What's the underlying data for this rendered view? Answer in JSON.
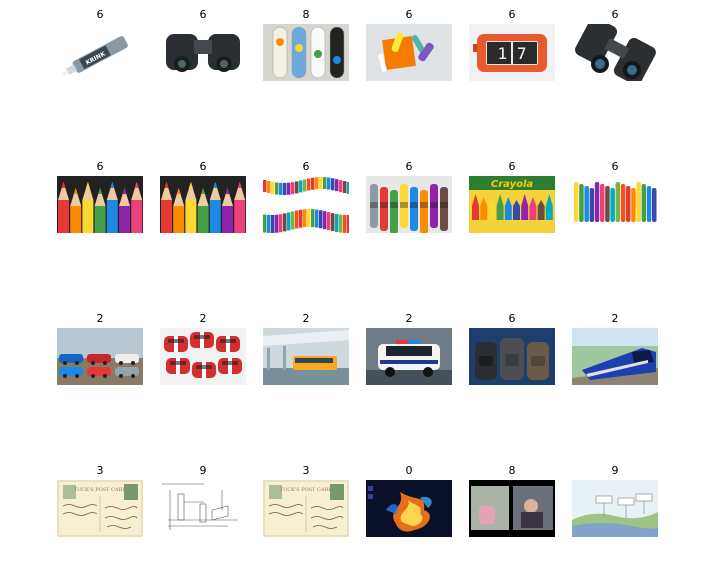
{
  "rows": [
    [
      {
        "label": "6",
        "icon": "marker-pen-icon"
      },
      {
        "label": "6",
        "icon": "compact-binoculars-icon"
      },
      {
        "label": "8",
        "icon": "skateboards-icon"
      },
      {
        "label": "6",
        "icon": "paper-clips-icon"
      },
      {
        "label": "6",
        "icon": "flip-clock-icon",
        "text": "1 7"
      },
      {
        "label": "6",
        "icon": "large-binoculars-icon"
      }
    ],
    [
      {
        "label": "6",
        "icon": "colored-pencils-icon"
      },
      {
        "label": "6",
        "icon": "colored-pencils-icon"
      },
      {
        "label": "6",
        "icon": "pencil-wave-icon"
      },
      {
        "label": "6",
        "icon": "crayons-icon"
      },
      {
        "label": "6",
        "icon": "crayola-box-icon",
        "text": "Crayola"
      },
      {
        "label": "6",
        "icon": "crayons-row-icon"
      }
    ],
    [
      {
        "label": "2",
        "icon": "sports-cars-icon"
      },
      {
        "label": "2",
        "icon": "red-cars-icon"
      },
      {
        "label": "2",
        "icon": "bus-terminal-icon"
      },
      {
        "label": "2",
        "icon": "police-suv-icon"
      },
      {
        "label": "6",
        "icon": "backpacks-icon"
      },
      {
        "label": "2",
        "icon": "blue-train-icon"
      }
    ],
    [
      {
        "label": "3",
        "icon": "postcard-icon"
      },
      {
        "label": "9",
        "icon": "technical-drawing-icon"
      },
      {
        "label": "3",
        "icon": "postcard-icon"
      },
      {
        "label": "0",
        "icon": "fire-abstract-icon"
      },
      {
        "label": "8",
        "icon": "photo-collage-icon"
      },
      {
        "label": "9",
        "icon": "landscape-diagram-icon"
      }
    ]
  ]
}
